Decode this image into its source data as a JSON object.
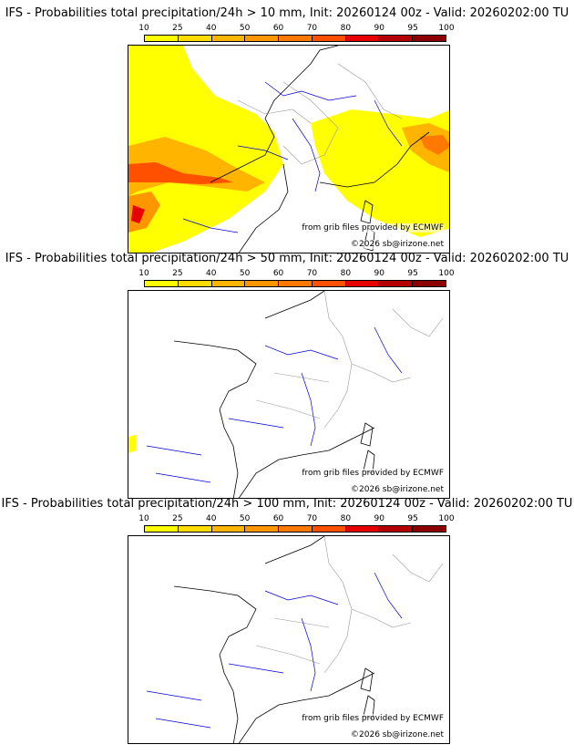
{
  "colorbar": {
    "ticks": [
      "10",
      "25",
      "40",
      "50",
      "60",
      "70",
      "80",
      "90",
      "95",
      "100"
    ],
    "colors": [
      "#ffff00",
      "#ffdc00",
      "#ffb400",
      "#ff9600",
      "#ff7800",
      "#ff5000",
      "#e60000",
      "#b40000",
      "#8c0000"
    ]
  },
  "panels": [
    {
      "title": "IFS - Probabilities total precipitation/24h > 10 mm, Init: 20260124 00z - Valid: 20260202:00 TU",
      "credit_source": "from grib files provided by ECMWF",
      "credit_copyright": "©2026 sb@irizone.net"
    },
    {
      "title": "IFS - Probabilities total precipitation/24h > 50 mm, Init: 20260124 00z - Valid: 20260202:00 TU",
      "credit_source": "from grib files provided by ECMWF",
      "credit_copyright": "©2026 sb@irizone.net"
    },
    {
      "title": "IFS - Probabilities total precipitation/24h > 100 mm, Init: 20260124 00z - Valid: 20260202:00 TU",
      "credit_source": "from grib files provided by ECMWF",
      "credit_copyright": "©2026 sb@irizone.net"
    }
  ]
}
